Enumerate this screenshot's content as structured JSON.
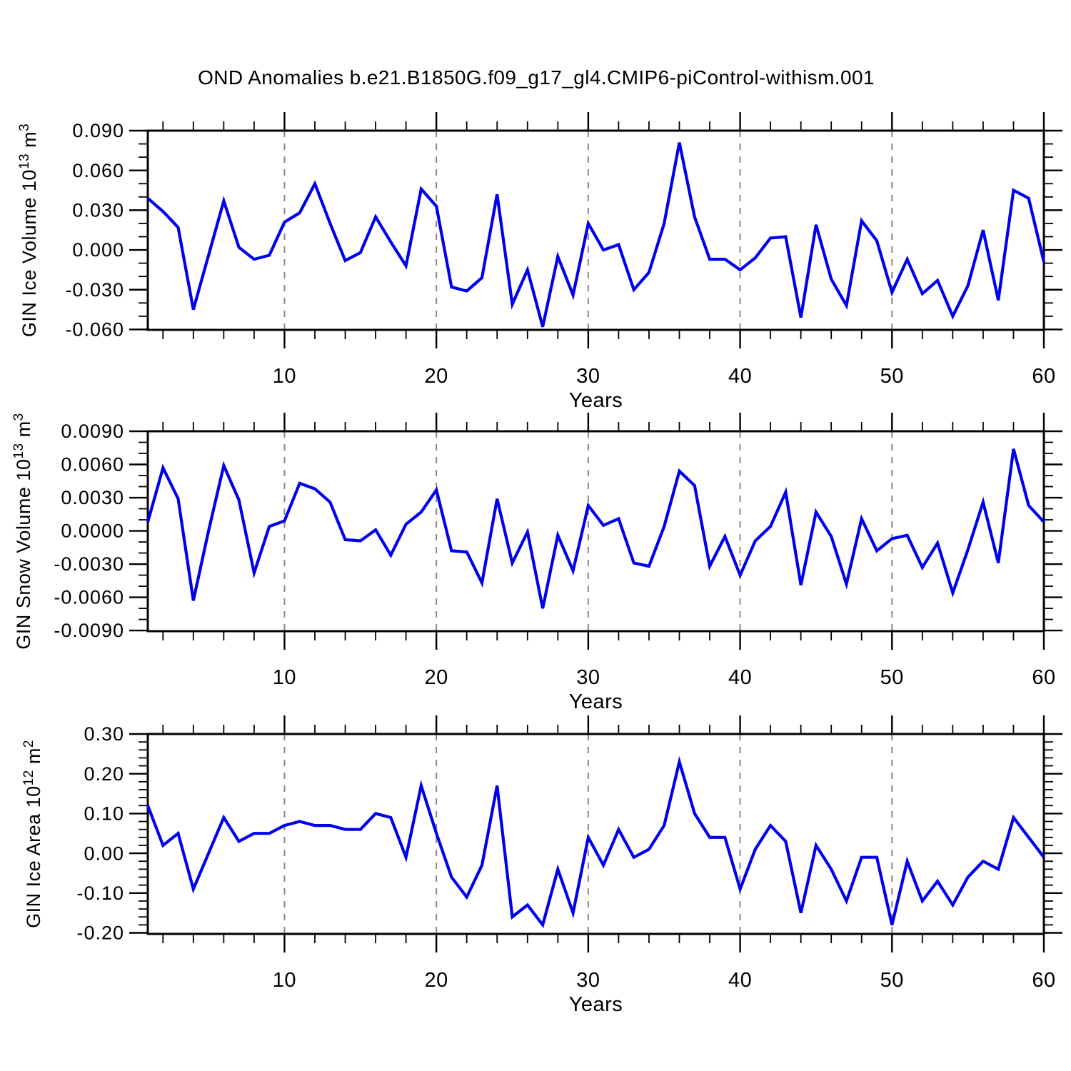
{
  "title": "OND Anomalies b.e21.B1850G.f09_g17_gl4.CMIP6-piControl-withism.001",
  "colors": {
    "line": "#0000ee",
    "grid": "#888888",
    "axis": "#000000",
    "background": "#ffffff"
  },
  "chart_data": [
    {
      "type": "line",
      "ylabel_parts": [
        {
          "t": "GIN Ice Volume 10"
        },
        {
          "t": "13",
          "sup": true
        },
        {
          "t": " m"
        },
        {
          "t": "3",
          "sup": true
        }
      ],
      "xlabel": "Years",
      "x_start": 1,
      "xlim": [
        1,
        60
      ],
      "xticks": [
        10,
        20,
        30,
        40,
        50,
        60
      ],
      "x_minor_step": 2,
      "grid_x": [
        10,
        20,
        30,
        40,
        50
      ],
      "ylim": [
        -0.0603,
        0.09
      ],
      "ytick_values": [
        0.09,
        0.06,
        0.03,
        0.0,
        -0.03,
        -0.06
      ],
      "ytick_labels": [
        "0.090",
        "0.060",
        "0.030",
        "0.000",
        "-0.030",
        "-0.060"
      ],
      "y_minor_step": 0.01,
      "values": [
        0.039,
        0.029,
        0.017,
        -0.045,
        -0.004,
        0.037,
        0.002,
        -0.007,
        -0.004,
        0.021,
        0.028,
        0.05,
        0.02,
        -0.008,
        -0.002,
        0.025,
        0.006,
        -0.012,
        0.046,
        0.033,
        -0.028,
        -0.031,
        -0.021,
        0.042,
        -0.041,
        -0.015,
        -0.058,
        -0.005,
        -0.034,
        0.02,
        0.0,
        0.004,
        -0.03,
        -0.017,
        0.02,
        0.081,
        0.025,
        -0.007,
        -0.007,
        -0.015,
        -0.006,
        0.009,
        0.01,
        -0.051,
        0.019,
        -0.022,
        -0.042,
        0.022,
        0.007,
        -0.032,
        -0.007,
        -0.033,
        -0.023,
        -0.05,
        -0.027,
        0.015,
        -0.038,
        0.045,
        0.039,
        -0.009
      ]
    },
    {
      "type": "line",
      "ylabel_parts": [
        {
          "t": "GIN Snow Volume 10"
        },
        {
          "t": "13",
          "sup": true
        },
        {
          "t": " m"
        },
        {
          "t": "3",
          "sup": true
        }
      ],
      "xlabel": "Years",
      "x_start": 1,
      "xlim": [
        1,
        60
      ],
      "xticks": [
        10,
        20,
        30,
        40,
        50,
        60
      ],
      "x_minor_step": 2,
      "grid_x": [
        10,
        20,
        30,
        40,
        50
      ],
      "ylim": [
        -0.00906,
        0.009
      ],
      "ytick_values": [
        0.009,
        0.006,
        0.003,
        0.0,
        -0.003,
        -0.006,
        -0.009
      ],
      "ytick_labels": [
        "0.0090",
        "0.0060",
        "0.0030",
        "0.0000",
        "-0.0030",
        "-0.0060",
        "-0.0090"
      ],
      "y_minor_step": 0.001,
      "values": [
        0.0008,
        0.0057,
        0.0029,
        -0.0063,
        0.0,
        0.0059,
        0.0028,
        -0.0038,
        0.0004,
        0.0009,
        0.0043,
        0.0038,
        0.0026,
        -0.0008,
        -0.0009,
        0.0001,
        -0.0022,
        0.0006,
        0.0017,
        0.0037,
        -0.0018,
        -0.0019,
        -0.0047,
        0.0029,
        -0.0029,
        -0.0001,
        -0.007,
        -0.0004,
        -0.0036,
        0.0023,
        0.0005,
        0.0011,
        -0.0029,
        -0.0032,
        0.0004,
        0.0054,
        0.0041,
        -0.0032,
        -0.0005,
        -0.004,
        -0.0009,
        0.0004,
        0.0035,
        -0.0049,
        0.0017,
        -0.0005,
        -0.0048,
        0.0011,
        -0.0018,
        -0.0007,
        -0.0004,
        -0.0033,
        -0.0011,
        -0.0056,
        -0.0017,
        0.0026,
        -0.0029,
        0.0074,
        0.0023,
        0.0008
      ]
    },
    {
      "type": "line",
      "ylabel_parts": [
        {
          "t": "GIN Ice Area 10"
        },
        {
          "t": "12",
          "sup": true
        },
        {
          "t": " m"
        },
        {
          "t": "2",
          "sup": true
        }
      ],
      "xlabel": "Years",
      "x_start": 1,
      "xlim": [
        1,
        60
      ],
      "xticks": [
        10,
        20,
        30,
        40,
        50,
        60
      ],
      "x_minor_step": 2,
      "grid_x": [
        10,
        20,
        30,
        40,
        50
      ],
      "ylim": [
        -0.2027,
        0.3
      ],
      "ytick_values": [
        0.3,
        0.2,
        0.1,
        0.0,
        -0.1,
        -0.2
      ],
      "ytick_labels": [
        "0.30",
        "0.20",
        "0.10",
        "0.00",
        "-0.10",
        "-0.20"
      ],
      "y_minor_step": 0.02,
      "values": [
        0.12,
        0.02,
        0.05,
        -0.09,
        0.0,
        0.09,
        0.03,
        0.05,
        0.05,
        0.07,
        0.08,
        0.07,
        0.07,
        0.06,
        0.06,
        0.1,
        0.09,
        -0.01,
        0.17,
        0.05,
        -0.06,
        -0.11,
        -0.03,
        0.17,
        -0.16,
        -0.13,
        -0.18,
        -0.04,
        -0.15,
        0.04,
        -0.03,
        0.06,
        -0.01,
        0.01,
        0.07,
        0.23,
        0.1,
        0.04,
        0.04,
        -0.09,
        0.01,
        0.07,
        0.03,
        -0.15,
        0.02,
        -0.04,
        -0.12,
        -0.01,
        -0.01,
        -0.18,
        -0.02,
        -0.12,
        -0.07,
        -0.13,
        -0.06,
        -0.02,
        -0.04,
        0.09,
        0.04,
        -0.01
      ]
    }
  ]
}
